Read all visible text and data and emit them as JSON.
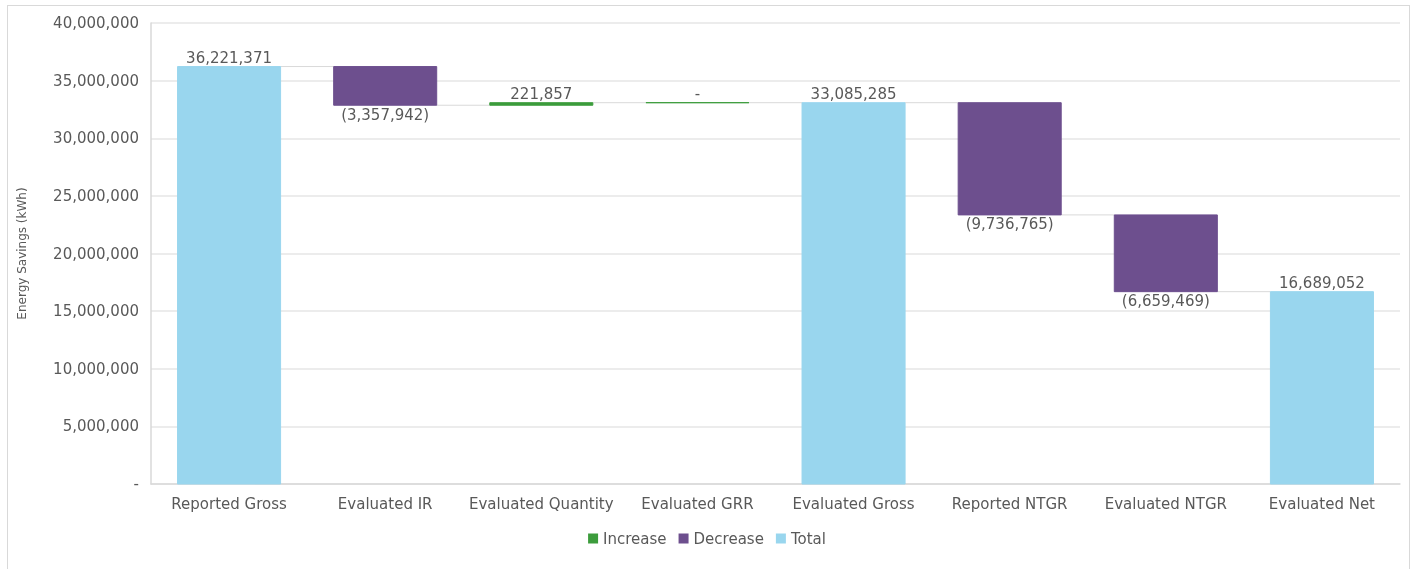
{
  "chart_data": {
    "type": "bar",
    "categories": [
      "Reported Gross",
      "Evaluated IR",
      "Evaluated Quantity",
      "Evaluated GRR",
      "Evaluated Gross",
      "Reported NTGR",
      "Evaluated NTGR",
      "Evaluated Net"
    ],
    "series": [
      {
        "name": "Increase",
        "color": "#3c9c3c",
        "values": [
          null,
          null,
          221857,
          0,
          null,
          null,
          null,
          null
        ],
        "base": [
          null,
          null,
          32863429,
          33085286,
          null,
          null,
          null,
          null
        ],
        "value_labels": [
          null,
          null,
          "221,857",
          "-",
          null,
          null,
          null,
          null
        ]
      },
      {
        "name": "Decrease",
        "color": "#6d4f8e",
        "values": [
          null,
          -3357942,
          null,
          null,
          null,
          -9736765,
          -6659469,
          null
        ],
        "base": [
          null,
          36221371,
          null,
          null,
          null,
          33085285,
          23348520,
          null
        ],
        "value_labels": [
          null,
          "(3,357,942)",
          null,
          null,
          null,
          "(9,736,765)",
          "(6,659,469)",
          null
        ]
      },
      {
        "name": "Total",
        "color": "#99d6ee",
        "values": [
          36221371,
          null,
          null,
          null,
          33085285,
          null,
          null,
          16689052
        ],
        "base": [
          0,
          null,
          null,
          null,
          0,
          null,
          null,
          0
        ],
        "value_labels": [
          "36,221,371",
          null,
          null,
          null,
          "33,085,285",
          null,
          null,
          "16,689,052"
        ]
      }
    ],
    "ylabel": "Energy Savings (kWh)",
    "ylim": [
      0,
      40000000
    ],
    "yticks": [
      {
        "value": 0,
        "label": "-"
      },
      {
        "value": 5000000,
        "label": "5,000,000"
      },
      {
        "value": 10000000,
        "label": "10,000,000"
      },
      {
        "value": 15000000,
        "label": "15,000,000"
      },
      {
        "value": 20000000,
        "label": "20,000,000"
      },
      {
        "value": 25000000,
        "label": "25,000,000"
      },
      {
        "value": 30000000,
        "label": "30,000,000"
      },
      {
        "value": 35000000,
        "label": "35,000,000"
      },
      {
        "value": 40000000,
        "label": "40,000,000"
      }
    ],
    "grid": "y",
    "legend": "bottom"
  }
}
